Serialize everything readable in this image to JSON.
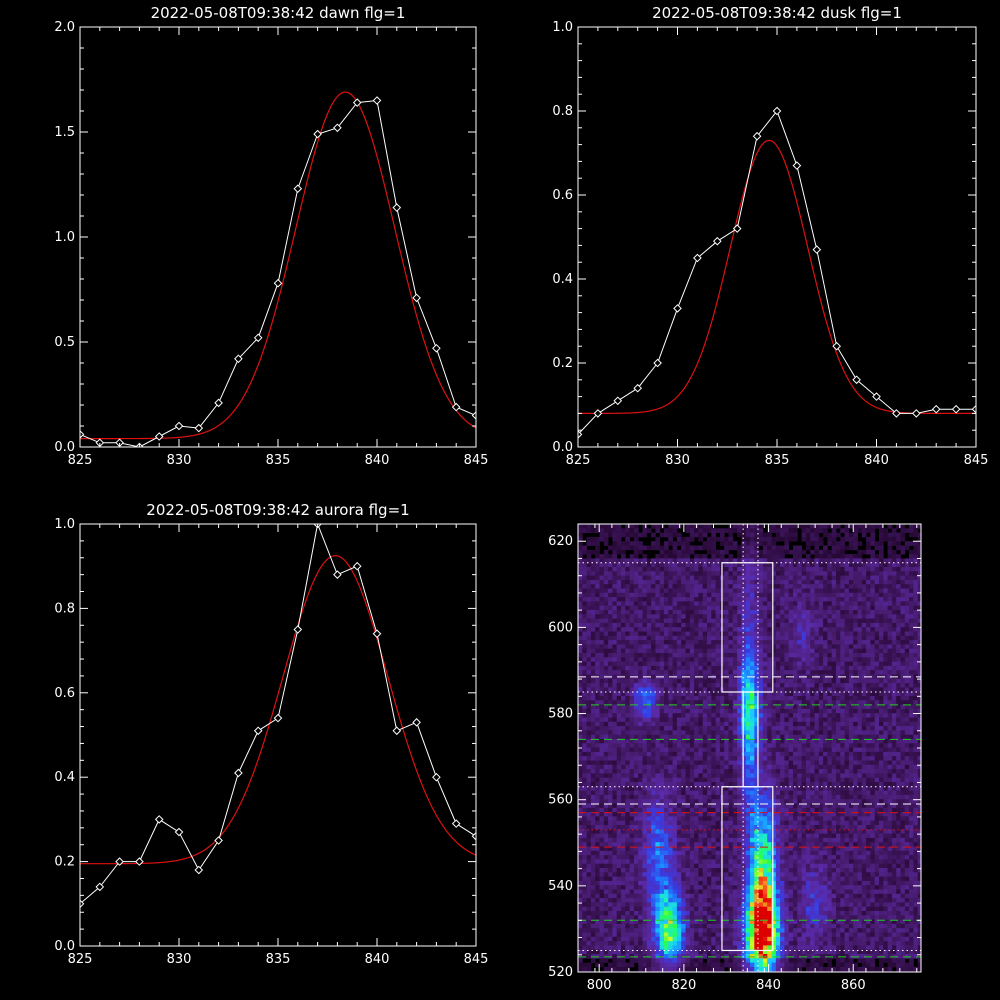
{
  "chart_data": [
    {
      "type": "line",
      "title": "2022-05-08T09:38:42 dawn flg=1",
      "xlim": [
        825,
        845
      ],
      "ylim": [
        0,
        2.0
      ],
      "xticks": [
        825,
        830,
        835,
        840,
        845
      ],
      "xtick_labels": [
        "825",
        "830",
        "835",
        "840",
        "845"
      ],
      "yticks": [
        0,
        0.5,
        1.0,
        1.5,
        2.0
      ],
      "ytick_labels": [
        "0.0",
        "0.5",
        "1.0",
        "1.5",
        "2.0"
      ],
      "series": [
        {
          "kind": "data",
          "color": "#ffffff",
          "x": [
            825,
            826,
            827,
            828,
            829,
            830,
            831,
            832,
            833,
            834,
            835,
            836,
            837,
            838,
            839,
            840,
            841,
            842,
            843,
            844,
            845
          ],
          "y": [
            0.06,
            0.02,
            0.02,
            0.0,
            0.05,
            0.1,
            0.09,
            0.21,
            0.42,
            0.52,
            0.78,
            1.23,
            1.49,
            1.52,
            1.64,
            1.65,
            1.14,
            0.71,
            0.47,
            0.19,
            0.15
          ]
        },
        {
          "kind": "fit",
          "color": "#dd1111",
          "gaussian": {
            "amplitude": 1.65,
            "center": 838.4,
            "sigma": 2.5,
            "offset": 0.04
          }
        }
      ]
    },
    {
      "type": "line",
      "title": "2022-05-08T09:38:42 dusk flg=1",
      "xlim": [
        825,
        845
      ],
      "ylim": [
        0,
        1.0
      ],
      "xticks": [
        825,
        830,
        835,
        840,
        845
      ],
      "xtick_labels": [
        "825",
        "830",
        "835",
        "840",
        "845"
      ],
      "yticks": [
        0,
        0.2,
        0.4,
        0.6,
        0.8,
        1.0
      ],
      "ytick_labels": [
        "0.0",
        "0.2",
        "0.4",
        "0.6",
        "0.8",
        "1.0"
      ],
      "series": [
        {
          "kind": "data",
          "color": "#ffffff",
          "x": [
            825,
            826,
            827,
            828,
            829,
            830,
            831,
            832,
            833,
            834,
            835,
            836,
            837,
            838,
            839,
            840,
            841,
            842,
            843,
            844,
            845
          ],
          "y": [
            0.03,
            0.08,
            0.11,
            0.14,
            0.2,
            0.33,
            0.45,
            0.49,
            0.52,
            0.74,
            0.8,
            0.67,
            0.47,
            0.24,
            0.16,
            0.12,
            0.08,
            0.08,
            0.09,
            0.09,
            0.09
          ]
        },
        {
          "kind": "fit",
          "color": "#dd1111",
          "gaussian": {
            "amplitude": 0.65,
            "center": 834.6,
            "sigma": 1.95,
            "offset": 0.08
          }
        }
      ]
    },
    {
      "type": "line",
      "title": "2022-05-08T09:38:42 aurora flg=1",
      "xlim": [
        825,
        845
      ],
      "ylim": [
        0,
        1.0
      ],
      "xticks": [
        825,
        830,
        835,
        840,
        845
      ],
      "xtick_labels": [
        "825",
        "830",
        "835",
        "840",
        "845"
      ],
      "yticks": [
        0,
        0.2,
        0.4,
        0.6,
        0.8,
        1.0
      ],
      "ytick_labels": [
        "0.0",
        "0.2",
        "0.4",
        "0.6",
        "0.8",
        "1.0"
      ],
      "series": [
        {
          "kind": "data",
          "color": "#ffffff",
          "x": [
            825,
            826,
            827,
            828,
            829,
            830,
            831,
            832,
            833,
            834,
            835,
            836,
            837,
            838,
            839,
            840,
            841,
            842,
            843,
            844,
            845
          ],
          "y": [
            0.1,
            0.14,
            0.2,
            0.2,
            0.3,
            0.27,
            0.18,
            0.25,
            0.41,
            0.51,
            0.54,
            0.75,
            1.0,
            0.88,
            0.9,
            0.74,
            0.51,
            0.53,
            0.4,
            0.29,
            0.26
          ]
        },
        {
          "kind": "fit",
          "color": "#dd1111",
          "gaussian": {
            "amplitude": 0.73,
            "center": 837.9,
            "sigma": 2.65,
            "offset": 0.195
          }
        }
      ]
    },
    {
      "type": "heatmap",
      "title": "",
      "xlim": [
        795,
        876
      ],
      "ylim": [
        520,
        624
      ],
      "xticks": [
        800,
        820,
        840,
        860
      ],
      "xtick_labels": [
        "800",
        "820",
        "840",
        "860"
      ],
      "yticks": [
        520,
        540,
        560,
        580,
        600,
        620
      ],
      "ytick_labels": [
        "520",
        "540",
        "560",
        "580",
        "600",
        "620"
      ],
      "colormap": [
        "#000000",
        "#2a0a3a",
        "#4a1d74",
        "#5a2aa8",
        "#3a3ae0",
        "#1f7cff",
        "#19c8ff",
        "#1cf0c0",
        "#2cff40",
        "#d8ff20",
        "#ff6020",
        "#dd0000"
      ],
      "intensity_sources": [
        {
          "x": 838.5,
          "y": 529,
          "sx": 2.6,
          "sy": 7,
          "amp": 1.0
        },
        {
          "x": 838.5,
          "y": 546,
          "sx": 2.3,
          "sy": 10,
          "amp": 0.55
        },
        {
          "x": 816.5,
          "y": 530,
          "sx": 2.4,
          "sy": 6,
          "amp": 0.6
        },
        {
          "x": 814,
          "y": 548,
          "sx": 2.5,
          "sy": 9,
          "amp": 0.28
        },
        {
          "x": 835.5,
          "y": 582,
          "sx": 1.8,
          "sy": 7,
          "amp": 0.42
        },
        {
          "x": 835.5,
          "y": 569,
          "sx": 1.5,
          "sy": 9,
          "amp": 0.22
        },
        {
          "x": 835.5,
          "y": 600,
          "sx": 1.6,
          "sy": 12,
          "amp": 0.16
        },
        {
          "x": 811,
          "y": 583,
          "sx": 1.8,
          "sy": 3,
          "amp": 0.3
        },
        {
          "x": 851,
          "y": 536,
          "sx": 2.2,
          "sy": 6,
          "amp": 0.18
        },
        {
          "x": 848,
          "y": 598,
          "sx": 2.0,
          "sy": 5,
          "amp": 0.12
        }
      ],
      "boxes": [
        {
          "x0": 829,
          "x1": 841,
          "y0": 585,
          "y1": 615
        },
        {
          "x0": 834,
          "x1": 837.5,
          "y0": 563,
          "y1": 585
        },
        {
          "x0": 829,
          "x1": 841,
          "y0": 525,
          "y1": 563
        }
      ],
      "reference_lines": [
        {
          "orientation": "horizontal",
          "value": 615,
          "style": "dotted",
          "color": "#ffffff"
        },
        {
          "orientation": "horizontal",
          "value": 588.5,
          "style": "dashed",
          "color": "#ffffff"
        },
        {
          "orientation": "horizontal",
          "value": 585,
          "style": "dotted",
          "color": "#ffffff"
        },
        {
          "orientation": "horizontal",
          "value": 582,
          "style": "dashed",
          "color": "#22cc22"
        },
        {
          "orientation": "horizontal",
          "value": 574,
          "style": "dashed",
          "color": "#22cc22"
        },
        {
          "orientation": "horizontal",
          "value": 563,
          "style": "dotted",
          "color": "#ffffff"
        },
        {
          "orientation": "horizontal",
          "value": 559,
          "style": "dashed",
          "color": "#ffffff"
        },
        {
          "orientation": "horizontal",
          "value": 557,
          "style": "dashed",
          "color": "#dd1111"
        },
        {
          "orientation": "horizontal",
          "value": 553,
          "style": "dotted",
          "color": "#dd1111"
        },
        {
          "orientation": "horizontal",
          "value": 549,
          "style": "dashed",
          "color": "#dd1111"
        },
        {
          "orientation": "horizontal",
          "value": 532,
          "style": "dashed",
          "color": "#22cc22"
        },
        {
          "orientation": "horizontal",
          "value": 525,
          "style": "dotted",
          "color": "#ffffff"
        },
        {
          "orientation": "horizontal",
          "value": 523.5,
          "style": "dashed",
          "color": "#22cc22"
        },
        {
          "orientation": "vertical",
          "value": 834,
          "style": "dotted",
          "color": "#ffffff"
        },
        {
          "orientation": "vertical",
          "value": 837.5,
          "style": "dotted",
          "color": "#ffffff"
        }
      ]
    }
  ]
}
